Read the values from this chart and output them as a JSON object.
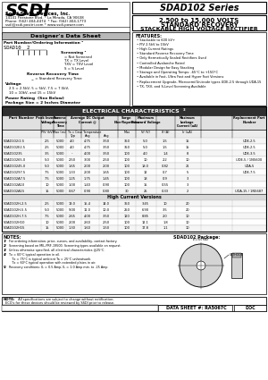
{
  "title_series": "SDAD102 Series",
  "subtitle1": "2,500 to 15,000 VOLTS",
  "subtitle2": "STANDARD RECOVERY",
  "subtitle3": "STACKABLE HIGH VOLTAGE RECTIFIER",
  "company": "Solid State Devices, Inc.",
  "address": "14141 Firestone Blvd. * La Mirada, CA 90638",
  "phone": "Phone: (562) 404-4474  * Fax: (562) 404-1773",
  "email": "ssdi@ssdi.positri.com * www.ssdi-power.com",
  "section_title": "Designer's Data Sheet",
  "ordering_title": "Part Number/Ordering Information",
  "ordering_note": "2",
  "part_example": "SDAD10  2",
  "screening_label": "Screening",
  "screening_note": "1",
  "screening_items": [
    "= Not Screened",
    "TX = TX Level",
    "TXV = TXV Level",
    "S = S Level"
  ],
  "recovery_label": "Reverse Recovery Time",
  "recovery_item": "__ = Standard Recovery Time",
  "voltage_label": "Voltage",
  "voltage_item": "2.5 = 2.5kV, 5 = 5kV, 7.5 = 7.5kV,",
  "voltage_item2": "10 = 10kV, and 15 = 15kV",
  "power_label": "Power Rating",
  "power_item": "(See Below)",
  "package_label": "Package Size",
  "package_item": "= 2 Inches Diameter",
  "features_title": "FEATURES:",
  "features": [
    "Stackable to 600 kV+",
    "PIV 2.5kV to 15kV",
    "High Current Ratings",
    "Standard Reverse Recovery Time",
    "Only Hermetically Sealed Rectifiers Used",
    "Controlled Avalanche Rated",
    "Modular Design for Easy Stacking",
    "Storage and Operating Temps: -65°C to +150°C",
    "Available in Fast, Ultra Fast and Hyper Fast Versions",
    "Replacement Upgrade- Microsemi/Unitrode types UDE-2.5 through UDA-15",
    "TX, TXV, and S-Level Screening Available"
  ],
  "features_note": "2",
  "elec_title": "ELECTRICAL CHARACTERISTICS",
  "elec_note": "3",
  "table_rows": [
    [
      "SDAD102/2.5",
      "2.5",
      "5000",
      "4.0",
      "4.75",
      "3.50",
      "350",
      "5.0",
      "1.5",
      "15",
      "UDE-2.5"
    ],
    [
      "SDAD102E2.5",
      "2.5",
      "5000",
      "4.0",
      "4.75",
      "3.50",
      "350",
      "5.0",
      "1.5",
      "15",
      "UDE-2.5"
    ],
    [
      "SDAD10235",
      "3.5",
      "5000",
      "--",
      "4.00",
      "3.50",
      "100",
      "4.0",
      "1.4",
      "8",
      "UDE-3.5"
    ],
    [
      "SDAD10265.0",
      "5.0",
      "5000",
      "2.50",
      "3.00",
      "2.50",
      "100",
      "10",
      "2.2",
      "10",
      "UDE-5 / 1N5600"
    ],
    [
      "SDAD10245.0",
      "5.0",
      "5000",
      "1.65",
      "2.00",
      "2.00",
      "100",
      "18.0",
      "0.82",
      "21",
      "UDA-5"
    ],
    [
      "SDAD10297.5",
      "7.5",
      "5000",
      "1.33",
      "2.00",
      "1.65",
      "100",
      "12",
      "0.7",
      "5",
      "UDE-7.5"
    ],
    [
      "SDAD102A7.5",
      "7.5",
      "5000",
      "1.25",
      "1.75",
      "1.45",
      "100",
      "18",
      "0.9",
      "3",
      ""
    ],
    [
      "SDAD102A10",
      "10",
      "5000",
      "1.00",
      "1.40",
      "0.90",
      "100",
      "15",
      "0.55",
      "3",
      ""
    ],
    [
      "SDAD102A15",
      "15",
      "5000",
      "0.67",
      "0.90",
      "0.80",
      "30",
      "25",
      "0.33",
      "2",
      "UDA-15 / 1N5687"
    ]
  ],
  "hc_rows": [
    [
      "SDAD102H-2.5",
      "2.5",
      "5000",
      "13.0",
      "15.4",
      "14.0",
      "350",
      "3.45",
      "10",
      "20",
      ""
    ],
    [
      "SDAD102H-5.5",
      "5.0",
      "5000",
      "9.00",
      "11.0",
      "10.0",
      "250",
      "6.90",
      "3.5",
      "20",
      ""
    ],
    [
      "SDAD102H-7.5",
      "7.5",
      "5000",
      "2.65",
      "4.00",
      "3.50",
      "120",
      "8.85",
      "2.0",
      "10",
      ""
    ],
    [
      "SDAD102H10",
      "10",
      "5000",
      "2.00",
      "2.60",
      "2.50",
      "100",
      "12.1",
      "1.8",
      "10",
      ""
    ],
    [
      "SDAD102H15",
      "15",
      "5000",
      "1.30",
      "1.60",
      "1.50",
      "100",
      "17.8",
      "1.1",
      "10",
      ""
    ]
  ],
  "hc_label": "High Current Versions",
  "notes_title": "NOTES:",
  "note_labels": [
    "1/",
    "2/",
    "3/",
    "4/",
    "5/"
  ],
  "note_texts": [
    "For ordering information, price, curves, and availability- contact factory.",
    "Screening based on MIL-PRF-19500. Screening types available on request.",
    "Unless otherwise specified, all electrical characteristics @25°C.",
    "Tx = 60°C typical operation in oil.\n   Tx = 75°C is typical ambient Ta = 25°C unheatsunk.\n   Tx = 60°C typical operation with extended plates in air.",
    "Recovery conditions: IL = 0.5 Amp; IL = 1.0 Amp min. to .25 Amp."
  ],
  "package_title": "SDAD102 Package:",
  "footer_note": "NOTE:  All specifications are subject to change without notification. ECO's for these devices should be reviewed by SSDI prior to release.",
  "footer_sheet": "DATA SHEET #: RA5067C",
  "footer_doc": "DOC",
  "bg_color": "#ffffff"
}
